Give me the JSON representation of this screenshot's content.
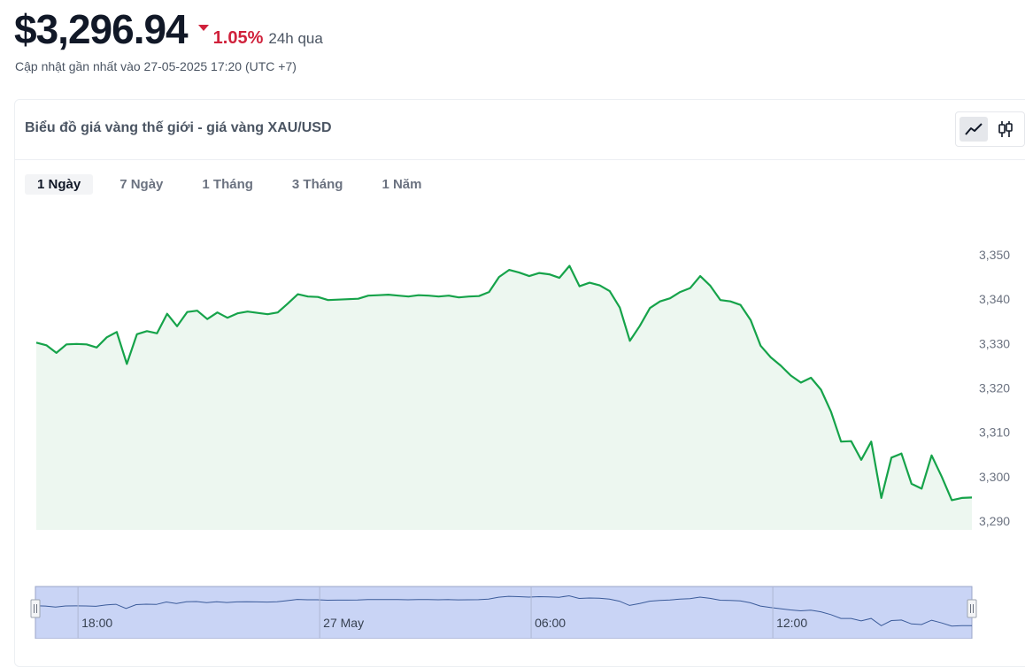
{
  "header": {
    "price": "$3,296.94",
    "change_pct": "1.05%",
    "change_period": "24h qua",
    "updated": "Cập nhật gần nhất vào 27-05-2025 17:20 (UTC +7)"
  },
  "card": {
    "title": "Biểu đồ giá vàng thế giới - giá vàng XAU/USD",
    "chart_types": [
      {
        "icon": "line-chart-icon",
        "active": true
      },
      {
        "icon": "candlestick-chart-icon",
        "active": false
      }
    ],
    "periods": [
      {
        "label": "1 Ngày",
        "active": true
      },
      {
        "label": "7 Ngày",
        "active": false
      },
      {
        "label": "1 Tháng",
        "active": false
      },
      {
        "label": "3 Tháng",
        "active": false
      },
      {
        "label": "1 Năm",
        "active": false
      }
    ]
  },
  "colors": {
    "line": "#16a34a",
    "area": "#edf7f0",
    "negative": "#d0213b",
    "navigator_fill": "#c9d4f5",
    "navigator_line": "#3b5b9a"
  },
  "chart_data": {
    "type": "area",
    "yticks": [
      3350,
      3340,
      3330,
      3320,
      3310,
      3300,
      3290
    ],
    "ytick_labels": [
      "3,350",
      "3,340",
      "3,330",
      "3,320",
      "3,310",
      "3,300",
      "3,290"
    ],
    "ylim": [
      3288,
      3356
    ],
    "grid": false,
    "values": [
      3330.2,
      3329.6,
      3327.9,
      3329.8,
      3329.9,
      3329.8,
      3329.1,
      3331.4,
      3332.6,
      3325.4,
      3332.1,
      3332.8,
      3332.3,
      3336.7,
      3333.9,
      3337.1,
      3337.4,
      3335.5,
      3337.0,
      3335.8,
      3336.8,
      3337.2,
      3336.9,
      3336.6,
      3337.0,
      3339.0,
      3341.1,
      3340.6,
      3340.5,
      3339.8,
      3339.9,
      3340.0,
      3340.1,
      3340.8,
      3340.9,
      3341.0,
      3340.8,
      3340.6,
      3340.9,
      3340.8,
      3340.6,
      3340.8,
      3340.4,
      3340.6,
      3340.7,
      3341.6,
      3345.0,
      3346.6,
      3346.0,
      3345.2,
      3345.9,
      3345.6,
      3344.8,
      3347.5,
      3342.9,
      3343.7,
      3343.1,
      3341.8,
      3338.1,
      3330.6,
      3334.0,
      3338.0,
      3339.5,
      3340.2,
      3341.6,
      3342.5,
      3345.2,
      3343.0,
      3339.8,
      3339.5,
      3338.7,
      3335.3,
      3329.5,
      3326.9,
      3325.0,
      3322.8,
      3321.2,
      3322.3,
      3319.6,
      3314.6,
      3307.9,
      3308.0,
      3303.8,
      3307.9,
      3295.2,
      3304.3,
      3305.2,
      3298.4,
      3297.3,
      3304.8,
      3300.0,
      3294.7,
      3295.2,
      3295.3
    ],
    "navigator": {
      "xtick_labels": [
        "18:00",
        "27 May",
        "06:00",
        "12:00"
      ],
      "xtick_index": [
        3,
        27,
        48,
        72
      ]
    }
  }
}
